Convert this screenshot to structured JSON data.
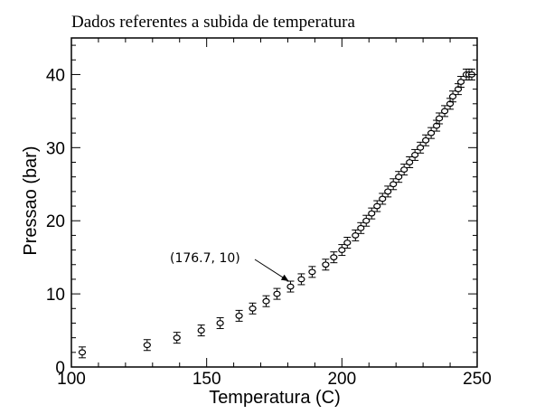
{
  "chart_data": {
    "type": "scatter",
    "title": "Dados referentes a subida de temperatura",
    "xlabel": "Temperatura (C)",
    "ylabel": "Pressao (bar)",
    "xlim": [
      100,
      250
    ],
    "ylim": [
      0,
      45
    ],
    "xticks": [
      100,
      150,
      200,
      250
    ],
    "yticks": [
      0,
      10,
      20,
      30,
      40
    ],
    "grid": false,
    "error_bars": true,
    "marker": "open-circle",
    "x": [
      104,
      128,
      139,
      148,
      155,
      162,
      167,
      172,
      176,
      181,
      185,
      189,
      194,
      197,
      200,
      202,
      205,
      207,
      209,
      211,
      213,
      215,
      217,
      219,
      221,
      223,
      225,
      227,
      229,
      231,
      233,
      235,
      236,
      238,
      240,
      241,
      243,
      244,
      246,
      247,
      248
    ],
    "y": [
      2,
      3,
      4,
      5,
      6,
      7,
      8,
      9,
      10,
      11,
      12,
      13,
      14,
      15,
      16,
      17,
      18,
      19,
      20,
      21,
      22,
      23,
      24,
      25,
      26,
      27,
      28,
      29,
      30,
      31,
      32,
      33,
      34,
      35,
      36,
      37,
      38,
      39,
      40,
      40,
      40
    ],
    "annotation": {
      "text": "(176.7, 10)",
      "point": [
        181,
        11
      ]
    }
  }
}
